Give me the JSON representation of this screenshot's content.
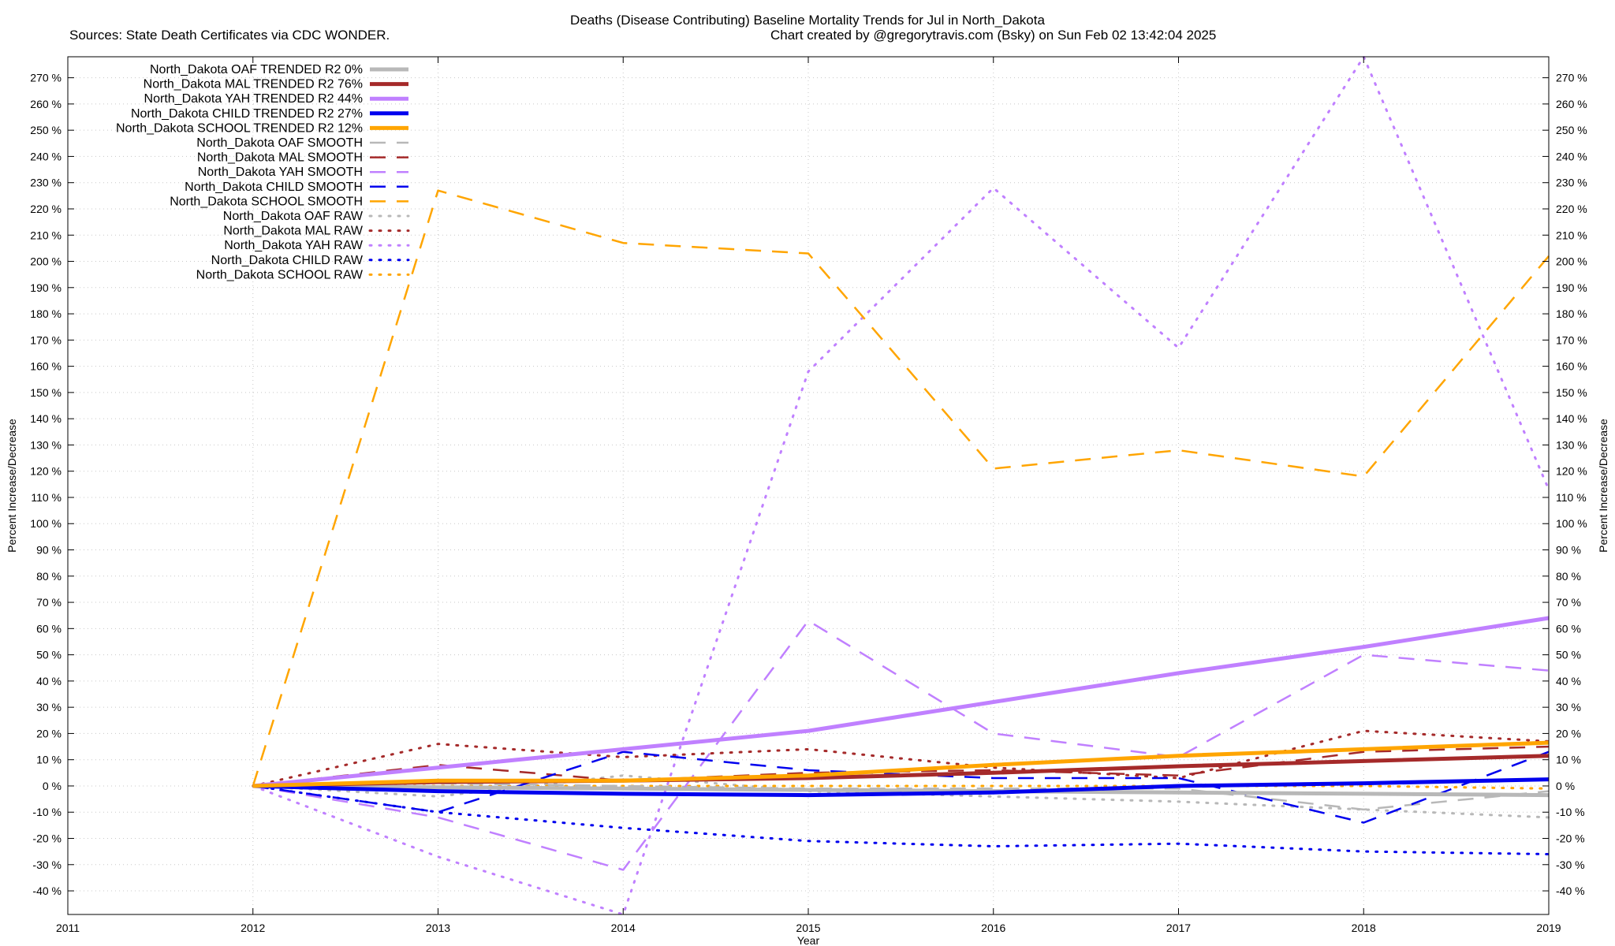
{
  "header": {
    "title": "Deaths (Disease Contributing)  Baseline Mortality Trends for Jul in North_Dakota",
    "sources": "Sources: State Death Certificates via CDC WONDER.",
    "credit": "Chart created by @gregorytravis.com (Bsky) on Sun Feb 02 13:42:04 2025"
  },
  "chart_data": {
    "type": "line",
    "xlabel": "Year",
    "ylabel": "Percent Increase/Decrease",
    "ylabel_right": "Percent Increase/Decrease",
    "xlim": [
      2011,
      2019
    ],
    "ylim": [
      -49,
      278
    ],
    "x_ticks": [
      2011,
      2012,
      2013,
      2014,
      2015,
      2016,
      2017,
      2018,
      2019
    ],
    "y_ticks": [
      -40,
      -30,
      -20,
      -10,
      0,
      10,
      20,
      30,
      40,
      50,
      60,
      70,
      80,
      90,
      100,
      110,
      120,
      130,
      140,
      150,
      160,
      170,
      180,
      190,
      200,
      210,
      220,
      230,
      240,
      250,
      260,
      270
    ],
    "y_tick_suffix": " %",
    "grid": true,
    "legend_position": "top-left",
    "x": [
      2012,
      2013,
      2014,
      2015,
      2016,
      2017,
      2018,
      2019
    ],
    "series": [
      {
        "name": "North_Dakota OAF TRENDED R2  0%",
        "style": "solid",
        "color": "#b8b8b8",
        "values": [
          0,
          -0.5,
          -1,
          -1.5,
          -2,
          -2.5,
          -3,
          -3.5
        ]
      },
      {
        "name": "North_Dakota MAL TRENDED R2  76%",
        "style": "solid",
        "color": "#a52a2a",
        "values": [
          0,
          1.5,
          2,
          3,
          5,
          7.5,
          9.5,
          11.5
        ]
      },
      {
        "name": "North_Dakota YAH TRENDED R2  44%",
        "style": "solid",
        "color": "#c080ff",
        "values": [
          0,
          7,
          14,
          21,
          32,
          43,
          53,
          64
        ]
      },
      {
        "name": "North_Dakota CHILD TRENDED R2  27%",
        "style": "solid",
        "color": "#0000ee",
        "values": [
          0,
          -2,
          -3,
          -3.5,
          -2.5,
          0,
          1,
          2.5
        ]
      },
      {
        "name": "North_Dakota SCHOOL TRENDED R2  12%",
        "style": "solid",
        "color": "#ffa500",
        "values": [
          0,
          2,
          2,
          4,
          8,
          11.5,
          14,
          16.5
        ]
      },
      {
        "name": "North_Dakota OAF SMOOTH",
        "style": "dashed",
        "color": "#b8b8b8",
        "values": [
          0,
          1,
          0,
          -1,
          -1,
          -1,
          -9,
          -2
        ]
      },
      {
        "name": "North_Dakota MAL SMOOTH",
        "style": "dashed",
        "color": "#a52a2a",
        "values": [
          0,
          8,
          2,
          5,
          6,
          4,
          13,
          15
        ]
      },
      {
        "name": "North_Dakota YAH SMOOTH",
        "style": "dashed",
        "color": "#c080ff",
        "values": [
          0,
          -12,
          -32,
          63,
          20,
          11,
          50,
          44
        ]
      },
      {
        "name": "North_Dakota CHILD SMOOTH",
        "style": "dashed",
        "color": "#0000ee",
        "values": [
          0,
          -10,
          13,
          6,
          3,
          3,
          -14,
          13
        ]
      },
      {
        "name": "North_Dakota SCHOOL SMOOTH",
        "style": "dashed",
        "color": "#ffa500",
        "values": [
          0,
          227,
          207,
          203,
          121,
          128,
          118,
          202
        ]
      },
      {
        "name": "North_Dakota OAF RAW",
        "style": "dotted",
        "color": "#b8b8b8",
        "values": [
          0,
          -4,
          4,
          -2,
          -4,
          -6,
          -9,
          -12
        ]
      },
      {
        "name": "North_Dakota MAL RAW",
        "style": "dotted",
        "color": "#a52a2a",
        "values": [
          0,
          16,
          11,
          14,
          7,
          3,
          21,
          17
        ]
      },
      {
        "name": "North_Dakota YAH RAW",
        "style": "dotted",
        "color": "#c080ff",
        "values": [
          0,
          -27,
          -49,
          158,
          228,
          167,
          278,
          113
        ]
      },
      {
        "name": "North_Dakota CHILD RAW",
        "style": "dotted",
        "color": "#0000ee",
        "values": [
          0,
          -10,
          -16,
          -21,
          -23,
          -22,
          -25,
          -26
        ]
      },
      {
        "name": "North_Dakota SCHOOL RAW",
        "style": "dotted",
        "color": "#ffa500",
        "values": [
          0,
          0,
          0,
          0,
          0,
          0,
          0,
          -1
        ]
      }
    ]
  }
}
